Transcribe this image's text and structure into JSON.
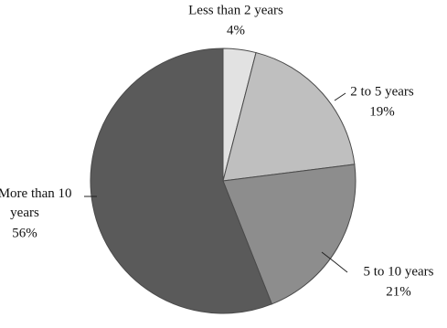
{
  "chart_data": {
    "type": "pie",
    "categories": [
      "Less than 2 years",
      "2 to 5 years",
      "5 to 10 years",
      "More than 10 years"
    ],
    "values": [
      4,
      19,
      21,
      56
    ],
    "value_labels": [
      "4%",
      "19%",
      "21%",
      "56%"
    ],
    "colors": [
      "#e2e2e2",
      "#bfbfbf",
      "#8d8d8d",
      "#5a5a5a"
    ]
  }
}
